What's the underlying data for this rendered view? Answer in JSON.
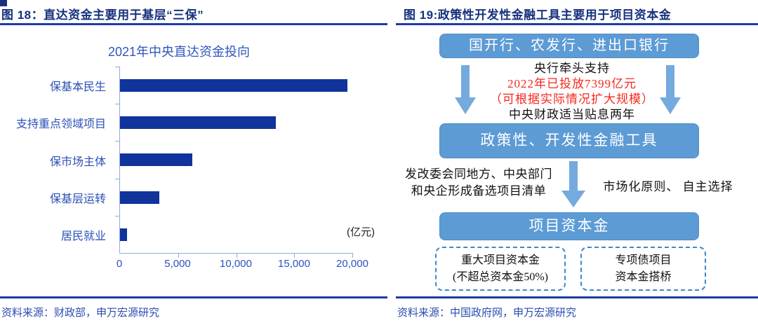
{
  "colors": {
    "bar_navy": "#10339c",
    "flow_box_blue": "#5d9bd5",
    "arrow_blue": "#74aadd",
    "red_highlight": "#f5281d",
    "heading_navy": "#16317d",
    "rule_blue": "#1e3ca0",
    "tick_blue": "#2b51c0"
  },
  "left_panel": {
    "figure_title": "图 18：直达资金主要用于基层“三保”",
    "source": "资料来源：财政部，申万宏源研究"
  },
  "chart_data": {
    "type": "bar",
    "orientation": "horizontal",
    "title": "2021年中央直达资金投向",
    "categories": [
      "保基本民生",
      "支持重点领域项目",
      "保市场主体",
      "保基层运转",
      "居民就业"
    ],
    "values": [
      19600,
      13400,
      6200,
      3400,
      600
    ],
    "unit_label": "(亿元)",
    "xlabel": "",
    "ylabel": "",
    "x_ticks": [
      "0",
      "5,000",
      "10,000",
      "15,000",
      "20,000"
    ],
    "xlim": [
      0,
      20000
    ],
    "grid": false,
    "legend": "none",
    "bar_color": "#10339c"
  },
  "right_panel": {
    "figure_title": "图 19:政策性开发性金融工具主要用于项目资本金",
    "source": "资料来源：中国政府网，申万宏源研究",
    "flow": {
      "top_box": "国开行、农发行、进出口银行",
      "annotation_lines": [
        {
          "text": "央行牵头支持",
          "color": "black"
        },
        {
          "text": "2022年已投放7399亿元",
          "color": "red"
        },
        {
          "text": "（可根据实际情况扩大规模）",
          "color": "red"
        },
        {
          "text": "中央财政适当贴息两年",
          "color": "black"
        }
      ],
      "mid_box": "政策性、开发性金融工具",
      "left_note_lines": [
        "发改委会同地方、中央部门",
        "和央企形成备选项目清单"
      ],
      "right_note": "市场化原则、 自主选择",
      "bottom_box": "项目资本金",
      "dashed_boxes": [
        {
          "lines": [
            "重大项目资本金",
            "(不超总资本金50%)"
          ]
        },
        {
          "lines": [
            "专项债项目",
            "资本金搭桥"
          ]
        }
      ]
    }
  }
}
